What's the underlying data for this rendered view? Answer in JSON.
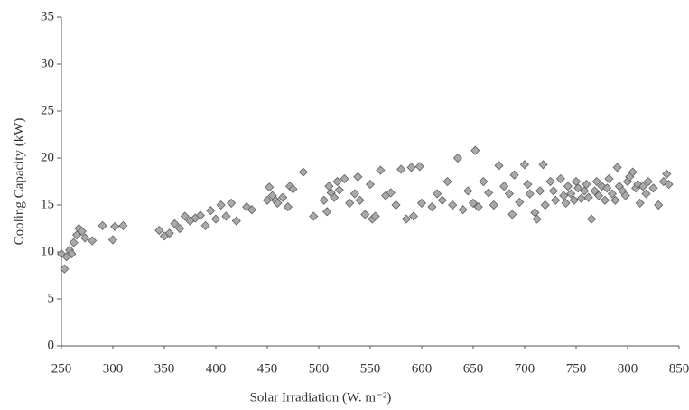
{
  "chart_data": {
    "type": "scatter",
    "xlabel": "Solar Irradiation (W. m⁻²)",
    "ylabel": "Cooling Capacity (kW)",
    "xlim": [
      250,
      850
    ],
    "xticks": [
      250,
      300,
      350,
      400,
      450,
      500,
      550,
      600,
      650,
      700,
      750,
      800,
      850
    ],
    "ylim": [
      0,
      35
    ],
    "yticks": [
      0,
      5,
      10,
      15,
      20,
      25,
      30,
      35
    ],
    "color": "#a9a9a9",
    "edgecolor": "#5f5f5f",
    "marker": "diamond",
    "grid": false,
    "x": [
      250,
      253,
      255,
      258,
      260,
      262,
      265,
      267,
      270,
      273,
      280,
      290,
      300,
      302,
      310,
      345,
      350,
      355,
      360,
      365,
      370,
      375,
      380,
      385,
      390,
      395,
      400,
      405,
      410,
      415,
      420,
      430,
      435,
      450,
      452,
      455,
      458,
      460,
      465,
      470,
      472,
      475,
      485,
      495,
      505,
      508,
      510,
      512,
      515,
      518,
      520,
      525,
      530,
      535,
      538,
      540,
      545,
      550,
      552,
      555,
      560,
      565,
      570,
      575,
      580,
      585,
      590,
      592,
      598,
      600,
      610,
      615,
      620,
      625,
      630,
      635,
      640,
      645,
      650,
      652,
      655,
      660,
      665,
      670,
      675,
      680,
      685,
      688,
      690,
      695,
      700,
      703,
      705,
      710,
      712,
      715,
      718,
      720,
      725,
      728,
      730,
      735,
      738,
      740,
      742,
      745,
      748,
      750,
      752,
      755,
      758,
      760,
      762,
      765,
      768,
      770,
      772,
      775,
      778,
      780,
      782,
      785,
      788,
      790,
      792,
      795,
      798,
      800,
      802,
      805,
      808,
      810,
      812,
      815,
      818,
      820,
      825,
      830,
      835,
      838,
      840
    ],
    "y": [
      9.8,
      8.2,
      9.5,
      10.2,
      9.8,
      11,
      11.8,
      12.5,
      12.2,
      11.5,
      11.2,
      12.8,
      11.3,
      12.7,
      12.8,
      12.3,
      11.7,
      12,
      13,
      12.5,
      13.8,
      13.3,
      13.6,
      13.9,
      12.8,
      14.4,
      13.5,
      15,
      13.8,
      15.2,
      13.3,
      14.8,
      14.5,
      15.5,
      16.9,
      16,
      15.5,
      15.2,
      15.8,
      14.8,
      17,
      16.7,
      18.5,
      13.8,
      15.5,
      14.3,
      17,
      16.3,
      15.8,
      17.5,
      16.6,
      17.8,
      15.2,
      16.2,
      18,
      15.5,
      14,
      17.2,
      13.5,
      13.8,
      18.7,
      16,
      16.3,
      15,
      18.8,
      13.5,
      19,
      13.8,
      19.1,
      15.2,
      14.8,
      16.2,
      15.5,
      17.5,
      15,
      20,
      14.5,
      16.5,
      15.2,
      20.8,
      14.8,
      17.5,
      16.3,
      15,
      19.2,
      17,
      16.2,
      14,
      18.2,
      15.3,
      19.3,
      17.2,
      16.2,
      14.2,
      13.5,
      16.5,
      19.3,
      15,
      17.5,
      16.5,
      15.5,
      17.8,
      16,
      15.2,
      17,
      16.2,
      15.5,
      17.5,
      16.8,
      15.7,
      16.5,
      17.2,
      15.8,
      13.5,
      16.5,
      17.5,
      16,
      17,
      15.5,
      16.8,
      17.8,
      16.2,
      15.5,
      19,
      17,
      16.5,
      16,
      17.5,
      18,
      18.5,
      16.8,
      17.2,
      15.2,
      17,
      16.2,
      17.5,
      16.8,
      15,
      17.5,
      18.3,
      17.2
    ]
  }
}
